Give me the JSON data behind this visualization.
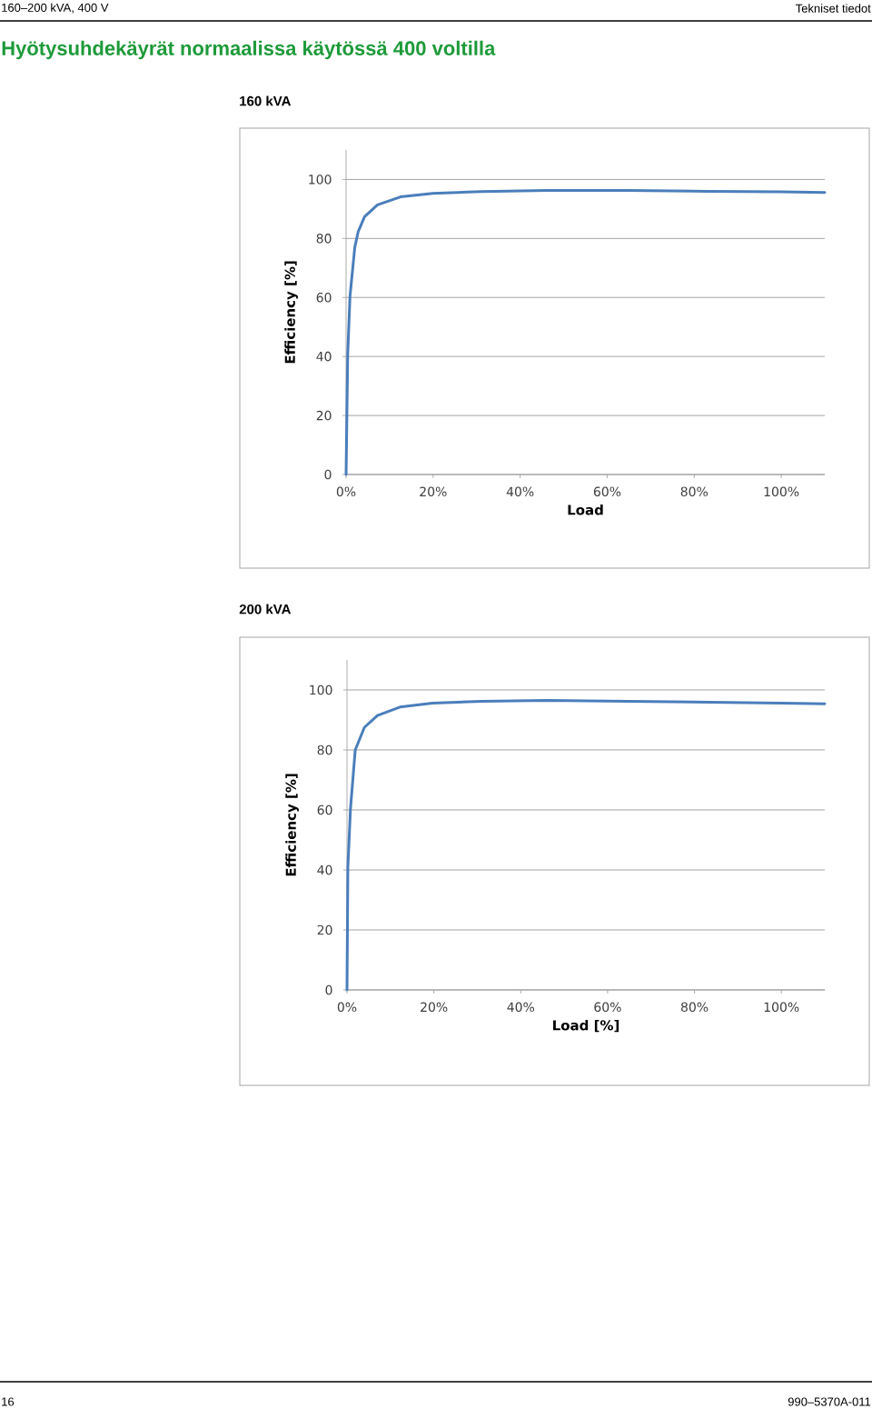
{
  "chart_data": [
    {
      "type": "line",
      "title": "160 kVA",
      "xlabel": "Load",
      "ylabel": "Efficiency [%]",
      "annotations": [
        "160–200 kVA, 400 V",
        "Tekniset tiedot",
        "Hyötysuhdekäyrät normaalissa käytössä 400 voltilla"
      ],
      "series": [
        {
          "color": "#4a7ebb",
          "x": [
            0,
            0.37,
            0.9,
            2.0,
            2.8,
            4.25,
            7.2,
            12.5,
            19.9,
            31.1,
            46,
            64.7,
            83.4,
            100,
            110
          ],
          "values": [
            0,
            40.7,
            60.4,
            77,
            82.4,
            87.4,
            91.4,
            94.1,
            95.3,
            95.9,
            96.3,
            96.3,
            96.0,
            95.8,
            95.6
          ]
        }
      ],
      "xlim": [
        0,
        110
      ],
      "ylim": [
        0,
        110
      ],
      "xticks": [
        {
          "value": 0,
          "label": "0%"
        },
        {
          "value": 20,
          "label": "20%"
        },
        {
          "value": 40,
          "label": "40%"
        },
        {
          "value": 60,
          "label": "60%"
        },
        {
          "value": 80,
          "label": "80%"
        },
        {
          "value": 100,
          "label": "100%"
        }
      ],
      "yticks": [
        0,
        20,
        40,
        60,
        80,
        100
      ],
      "grid": "y"
    },
    {
      "type": "line",
      "title": "200 kVA",
      "xlabel": "Load [%]",
      "ylabel": "Efficiency [%]",
      "annotations": [
        "16",
        "990–5370A-011"
      ],
      "series": [
        {
          "color": "#4a7ebb",
          "x": [
            0,
            0.2,
            0.8,
            1.9,
            4.0,
            7.0,
            12.2,
            19.7,
            31,
            46,
            64.7,
            83.5,
            100,
            110
          ],
          "values": [
            0,
            40.8,
            60.3,
            80,
            87.5,
            91.5,
            94.3,
            95.6,
            96.2,
            96.5,
            96.2,
            95.9,
            95.6,
            95.4
          ]
        }
      ],
      "xlim": [
        0,
        110
      ],
      "ylim": [
        0,
        110
      ],
      "xticks": [
        {
          "value": 0,
          "label": "0%"
        },
        {
          "value": 20,
          "label": "20%"
        },
        {
          "value": 40,
          "label": "40%"
        },
        {
          "value": 60,
          "label": "60%"
        },
        {
          "value": 80,
          "label": "80%"
        },
        {
          "value": 100,
          "label": "100%"
        }
      ],
      "yticks": [
        0,
        20,
        40,
        60,
        80,
        100
      ],
      "grid": "y"
    }
  ]
}
